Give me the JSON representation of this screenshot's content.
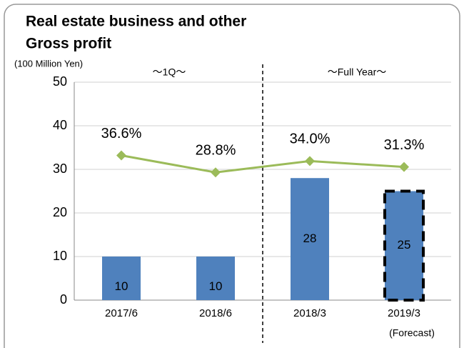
{
  "chart_data": {
    "type": "bar",
    "title": [
      "Real estate business and other",
      "Gross profit"
    ],
    "y_unit": "(100 Million Yen)",
    "group_labels": [
      "〜1Q〜",
      "〜Full Year〜"
    ],
    "note": "(Forecast)",
    "categories": [
      "2017/6",
      "2018/6",
      "2018/3",
      "2019/3"
    ],
    "divider_after": 1,
    "series": [
      {
        "type": "bar",
        "color": "#4f81bd",
        "values": [
          10,
          10,
          28,
          25
        ],
        "outline_dashed": [
          false,
          false,
          false,
          true
        ]
      },
      {
        "type": "line",
        "color": "#9bbb59",
        "axis": "y2",
        "values": [
          36.6,
          28.8,
          34.0,
          31.3
        ],
        "value_labels": [
          "36.6%",
          "28.8%",
          "34.0%",
          "31.3%"
        ]
      }
    ],
    "ylim": [
      0,
      50
    ],
    "yticks": [
      0,
      10,
      20,
      30,
      40,
      50
    ],
    "y2lim": [
      -29.8,
      70.2
    ],
    "grid": true
  }
}
